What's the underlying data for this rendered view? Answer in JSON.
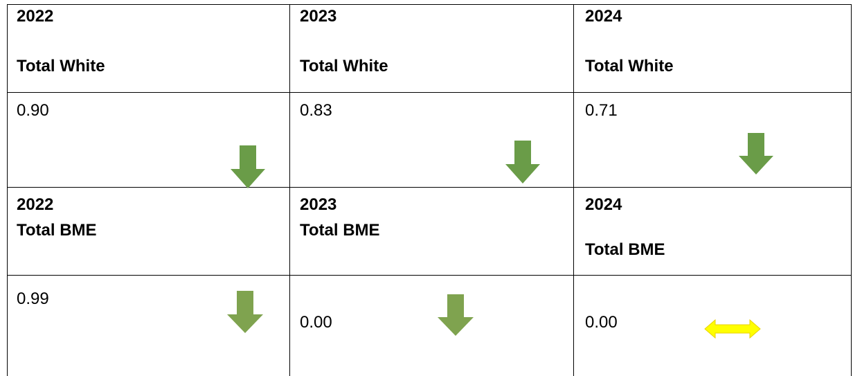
{
  "table": {
    "rows": [
      [
        [
          "2022",
          "Total White"
        ],
        [
          "2023",
          "Total White"
        ],
        [
          "2024",
          "Total White"
        ]
      ],
      [
        [
          "0.90"
        ],
        [
          "0.83"
        ],
        [
          "0.71"
        ]
      ],
      [
        [
          "2022",
          "Total BME"
        ],
        [
          "2023",
          "Total BME"
        ],
        [
          "2024",
          "Total BME"
        ]
      ],
      [
        [
          "0.99"
        ],
        [
          "0.00"
        ],
        [
          "0.00"
        ]
      ]
    ]
  }
}
